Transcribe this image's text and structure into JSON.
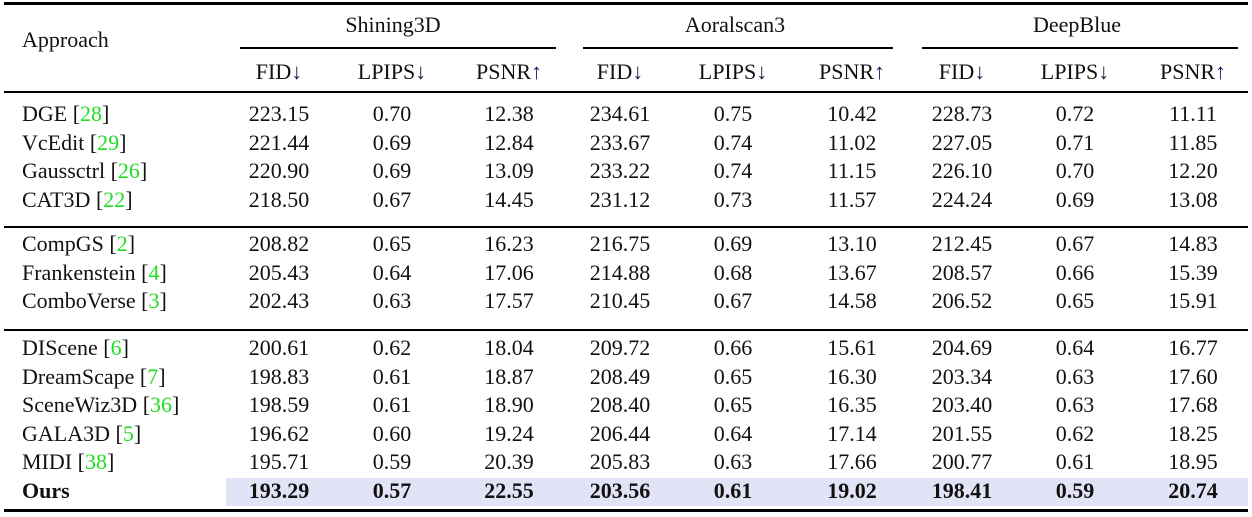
{
  "table": {
    "approach_header": "Approach",
    "groups": [
      "Shining3D",
      "Aoralscan3",
      "DeepBlue"
    ],
    "metrics": [
      {
        "name": "FID",
        "arrow": "↓"
      },
      {
        "name": "LPIPS",
        "arrow": "↓"
      },
      {
        "name": "PSNR",
        "arrow": "↑"
      }
    ],
    "reference_color": "#22dd22",
    "highlight_color": "#e3e3f7",
    "sections": [
      [
        {
          "method": "DGE",
          "ref": "28",
          "values": [
            "223.15",
            "0.70",
            "12.38",
            "234.61",
            "0.75",
            "10.42",
            "228.73",
            "0.72",
            "11.11"
          ]
        },
        {
          "method": "VcEdit",
          "ref": "29",
          "values": [
            "221.44",
            "0.69",
            "12.84",
            "233.67",
            "0.74",
            "11.02",
            "227.05",
            "0.71",
            "11.85"
          ]
        },
        {
          "method": "Gaussctrl",
          "ref": "26",
          "values": [
            "220.90",
            "0.69",
            "13.09",
            "233.22",
            "0.74",
            "11.15",
            "226.10",
            "0.70",
            "12.20"
          ]
        },
        {
          "method": "CAT3D",
          "ref": "22",
          "values": [
            "218.50",
            "0.67",
            "14.45",
            "231.12",
            "0.73",
            "11.57",
            "224.24",
            "0.69",
            "13.08"
          ]
        }
      ],
      [
        {
          "method": "CompGS",
          "ref": "2",
          "values": [
            "208.82",
            "0.65",
            "16.23",
            "216.75",
            "0.69",
            "13.10",
            "212.45",
            "0.67",
            "14.83"
          ]
        },
        {
          "method": "Frankenstein",
          "ref": "4",
          "values": [
            "205.43",
            "0.64",
            "17.06",
            "214.88",
            "0.68",
            "13.67",
            "208.57",
            "0.66",
            "15.39"
          ]
        },
        {
          "method": "ComboVerse",
          "ref": "3",
          "values": [
            "202.43",
            "0.63",
            "17.57",
            "210.45",
            "0.67",
            "14.58",
            "206.52",
            "0.65",
            "15.91"
          ]
        }
      ],
      [
        {
          "method": "DIScene",
          "ref": "6",
          "values": [
            "200.61",
            "0.62",
            "18.04",
            "209.72",
            "0.66",
            "15.61",
            "204.69",
            "0.64",
            "16.77"
          ]
        },
        {
          "method": "DreamScape",
          "ref": "7",
          "values": [
            "198.83",
            "0.61",
            "18.87",
            "208.49",
            "0.65",
            "16.30",
            "203.34",
            "0.63",
            "17.60"
          ]
        },
        {
          "method": "SceneWiz3D",
          "ref": "36",
          "values": [
            "198.59",
            "0.61",
            "18.90",
            "208.40",
            "0.65",
            "16.35",
            "203.40",
            "0.63",
            "17.68"
          ]
        },
        {
          "method": "GALA3D",
          "ref": "5",
          "values": [
            "196.62",
            "0.60",
            "19.24",
            "206.44",
            "0.64",
            "17.14",
            "201.55",
            "0.62",
            "18.25"
          ]
        },
        {
          "method": "MIDI",
          "ref": "38",
          "values": [
            "195.71",
            "0.59",
            "20.39",
            "205.83",
            "0.63",
            "17.66",
            "200.77",
            "0.61",
            "18.95"
          ]
        },
        {
          "method": "Ours",
          "ref": "",
          "highlight": true,
          "values": [
            "193.29",
            "0.57",
            "22.55",
            "203.56",
            "0.61",
            "19.02",
            "198.41",
            "0.59",
            "20.74"
          ]
        }
      ]
    ]
  }
}
